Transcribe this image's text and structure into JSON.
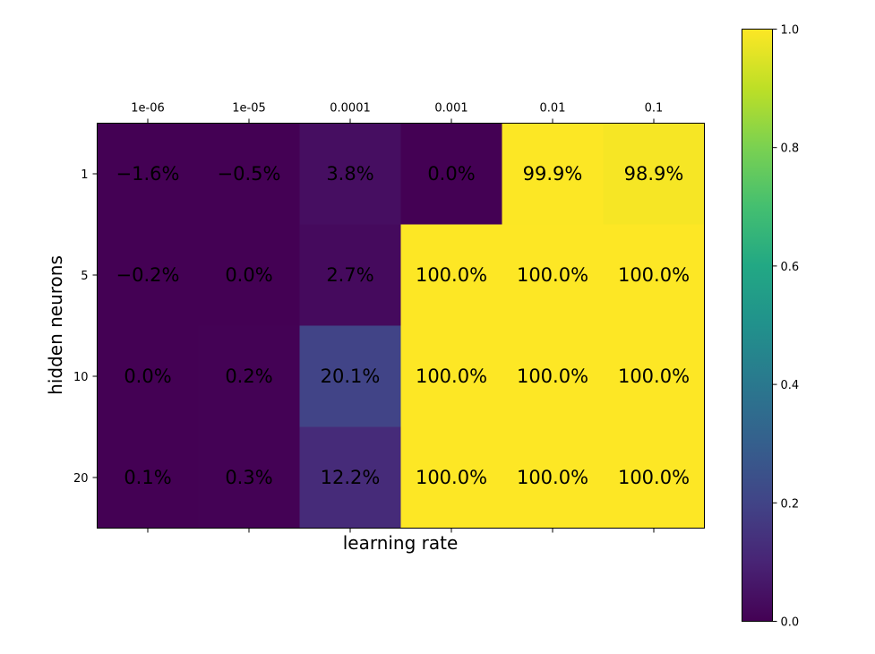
{
  "chart_data": {
    "type": "heatmap",
    "x_categories": [
      "1e-06",
      "1e-05",
      "0.0001",
      "0.001",
      "0.01",
      "0.1"
    ],
    "y_categories": [
      "1",
      "5",
      "10",
      "20"
    ],
    "values": [
      [
        -0.016,
        -0.005,
        0.038,
        0.0,
        0.999,
        0.989
      ],
      [
        -0.002,
        0.0,
        0.027,
        1.0,
        1.0,
        1.0
      ],
      [
        0.0,
        0.002,
        0.201,
        1.0,
        1.0,
        1.0
      ],
      [
        0.001,
        0.003,
        0.122,
        1.0,
        1.0,
        1.0
      ]
    ],
    "cell_labels": [
      [
        "−1.6%",
        "−0.5%",
        "3.8%",
        "0.0%",
        "99.9%",
        "98.9%"
      ],
      [
        "−0.2%",
        "0.0%",
        "2.7%",
        "100.0%",
        "100.0%",
        "100.0%"
      ],
      [
        "0.0%",
        "0.2%",
        "20.1%",
        "100.0%",
        "100.0%",
        "100.0%"
      ],
      [
        "0.1%",
        "0.3%",
        "12.2%",
        "100.0%",
        "100.0%",
        "100.0%"
      ]
    ],
    "xlabel": "learning rate",
    "ylabel": "hidden neurons",
    "x_tick_position": "top",
    "colormap": "viridis",
    "colorbar": {
      "range": [
        0.0,
        1.0
      ],
      "ticks": [
        "0.0",
        "0.2",
        "0.4",
        "0.6",
        "0.8",
        "1.0"
      ]
    },
    "grid": false
  }
}
